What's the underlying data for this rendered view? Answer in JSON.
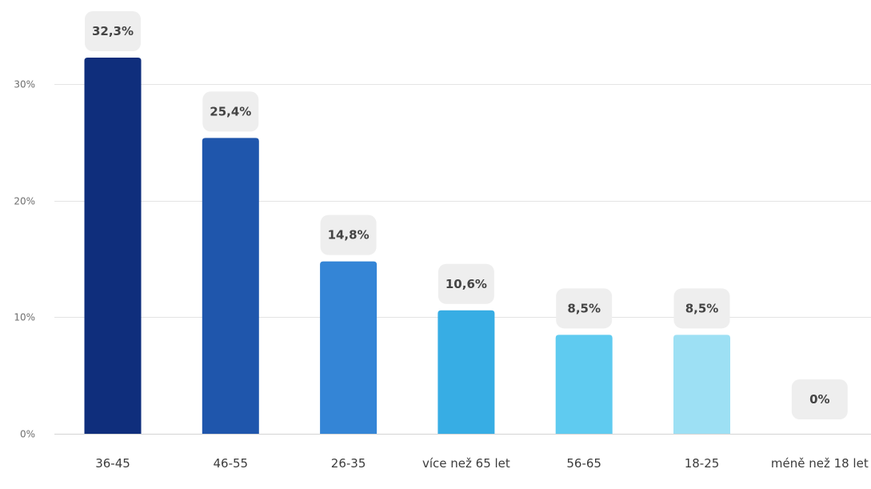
{
  "chart_data": {
    "type": "bar",
    "categories": [
      "36-45",
      "46-55",
      "26-35",
      "více než 65 let",
      "56-65",
      "18-25",
      "méně než 18 let"
    ],
    "values": [
      32.3,
      25.4,
      14.8,
      10.6,
      8.5,
      8.5,
      0
    ],
    "data_labels": [
      "32,3%",
      "25,4%",
      "14,8%",
      "10,6%",
      "8,5%",
      "8,5%",
      "0%"
    ],
    "y_ticks": [
      0,
      10,
      20,
      30
    ],
    "y_tick_labels": [
      "0%",
      "10%",
      "20%",
      "30%"
    ],
    "ylim": [
      0,
      32.3
    ],
    "grid": true,
    "legend": "none",
    "colors": [
      "#0f2e7c",
      "#1f56ac",
      "#3485d6",
      "#37ade4",
      "#5fcbf0",
      "#9de0f4",
      "#c7eef9"
    ]
  }
}
